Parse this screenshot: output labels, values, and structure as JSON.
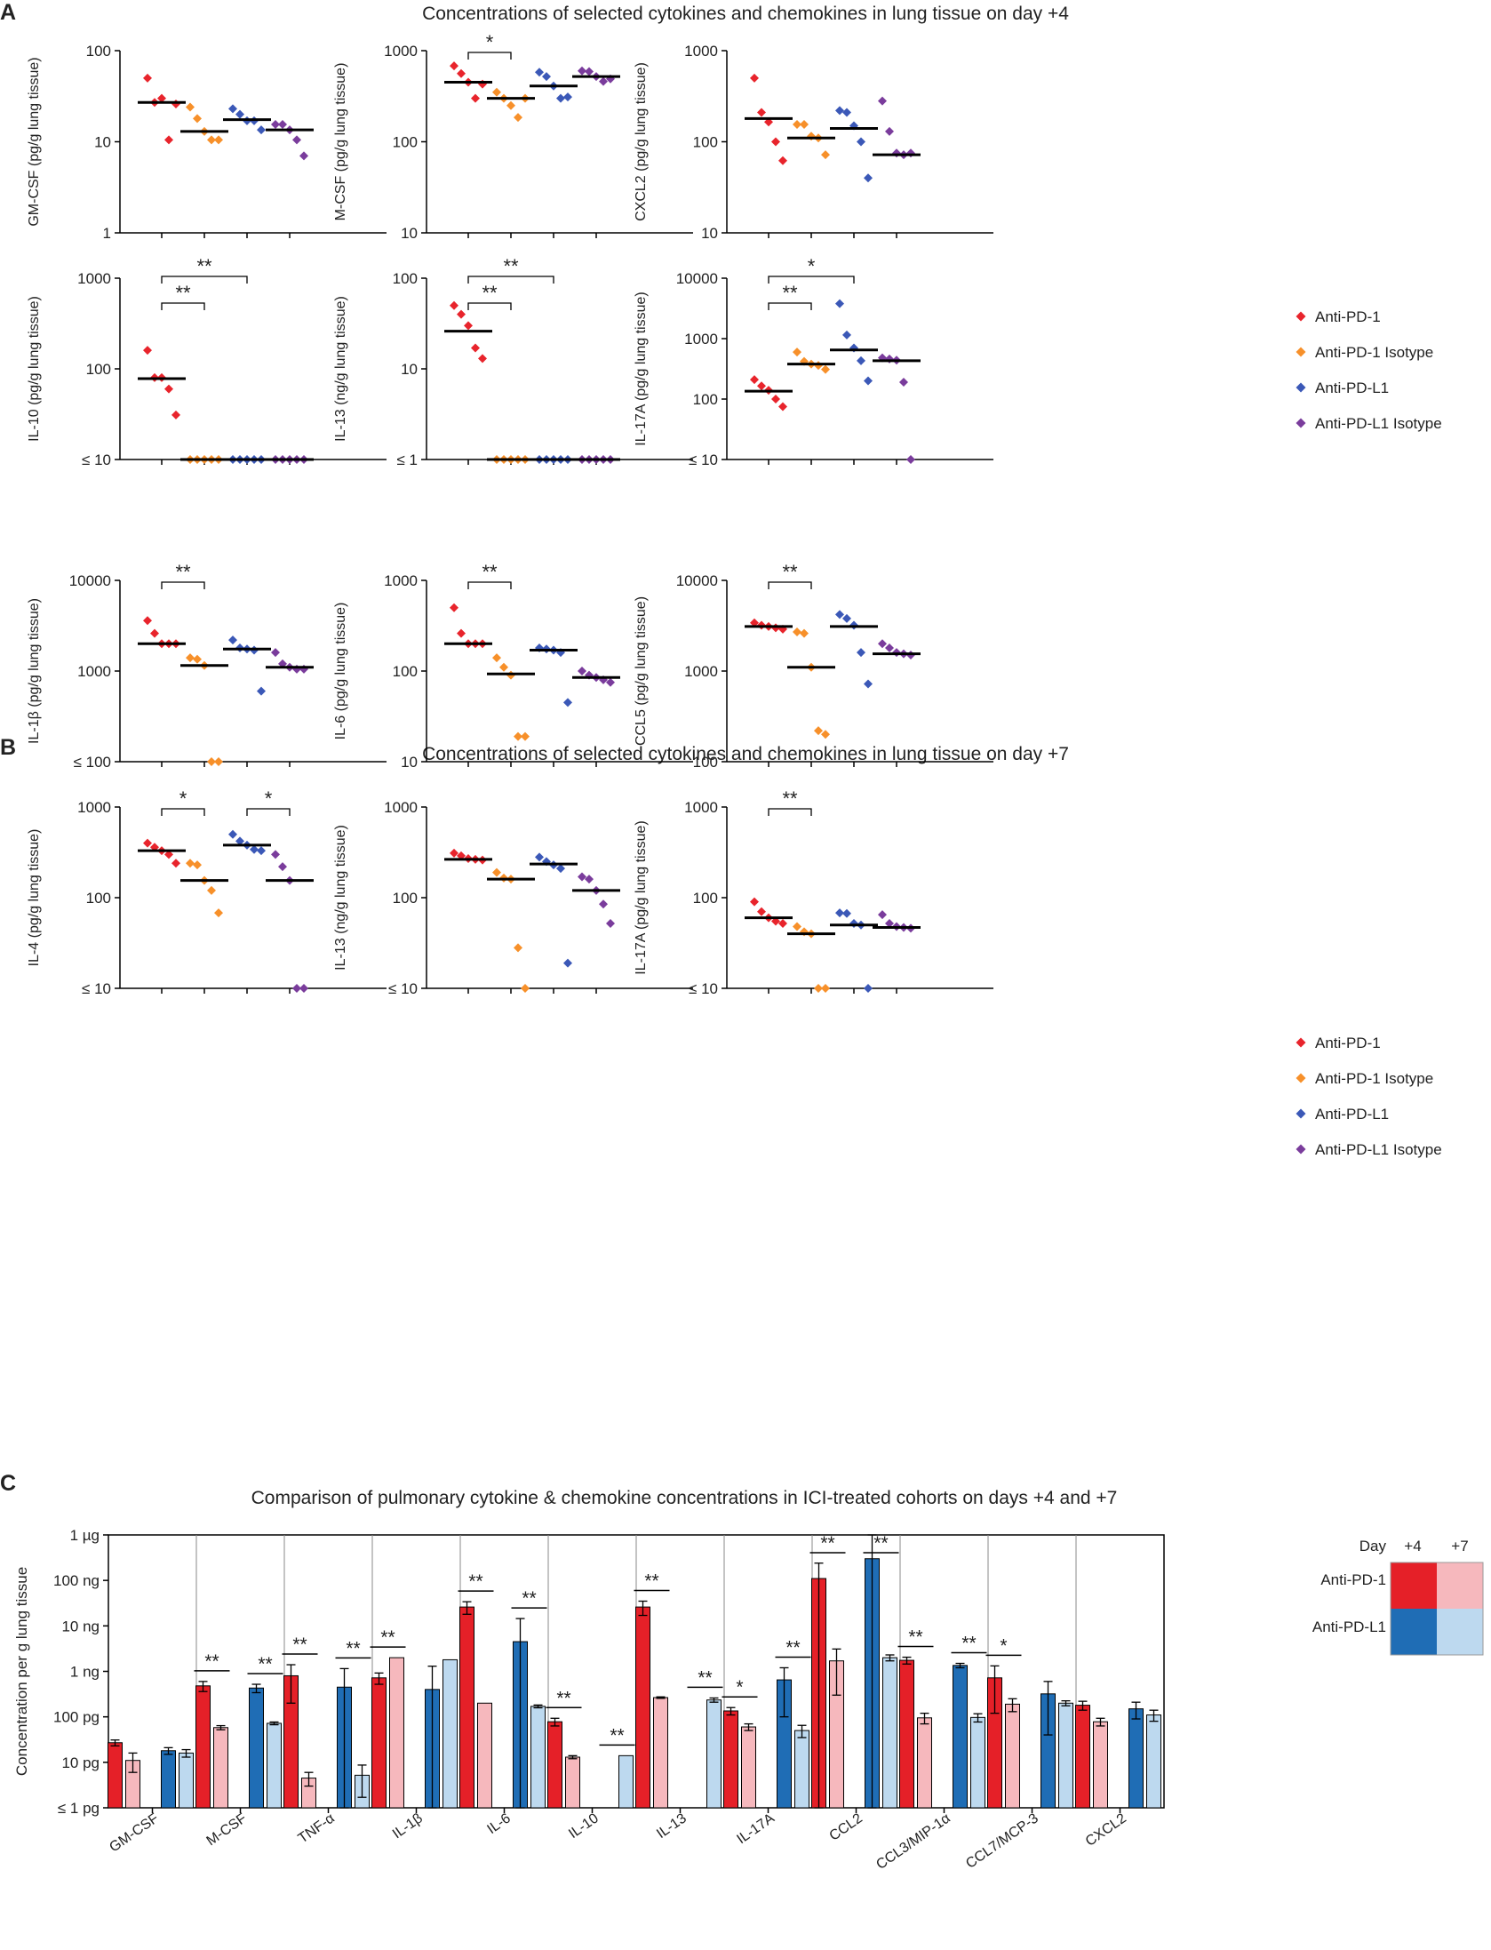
{
  "colors": {
    "anti_pd1": "#e8242c",
    "anti_pd1_isotype": "#f7902a",
    "anti_pdl1": "#3b58b7",
    "anti_pdl1_isotype": "#7a3c9c",
    "d4_pd1_bar": "#e52028",
    "d7_pd1_bar": "#f6b8bd",
    "d4_pdl1_bar": "#1f6db5",
    "d7_pdl1_bar": "#bdd9ef",
    "median": "#000000",
    "axis": "#000000"
  },
  "panels": [
    {
      "letter": "A",
      "title": "Concentrations of selected cytokines and chemokines in lung tissue on day +4"
    },
    {
      "letter": "B",
      "title": "Concentrations of selected cytokines and chemokines in lung tissue on day +7"
    },
    {
      "letter": "C",
      "title": "Comparison of pulmonary cytokine & chemokine concentrations in ICI-treated  cohorts on days +4 and +7"
    }
  ],
  "legend_groups": [
    "Anti-PD-1",
    "Anti-PD-1 Isotype",
    "Anti-PD-L1",
    "Anti-PD-L1 Isotype"
  ],
  "chart_data": [
    {
      "type": "scatter",
      "panel": "A",
      "ylabel": "GM-CSF  (pg/g  lung  tissue)",
      "scale": "log",
      "ylim": [
        1,
        100
      ],
      "ticks": [
        "1",
        "10",
        "100"
      ],
      "groups": [
        [
          50,
          27,
          30,
          10.5,
          26
        ],
        [
          24,
          18,
          13,
          10.5,
          10.5
        ],
        [
          23,
          20,
          17,
          17,
          13.5
        ],
        [
          15.5,
          15.5,
          13.5,
          10.5,
          7
        ]
      ],
      "medians": [
        27,
        13,
        17.5,
        13.5
      ],
      "sig": [],
      "categories": [
        "Anti-PD-1",
        "Anti-PD-1 Isotype",
        "Anti-PD-L1",
        "Anti-PD-L1 Isotype"
      ]
    },
    {
      "type": "scatter",
      "panel": "A",
      "ylabel": "M-CSF  (pg/g  lung  tissue)",
      "scale": "log",
      "ylim": [
        10,
        1000
      ],
      "ticks": [
        "10",
        "100",
        "1000"
      ],
      "groups": [
        [
          680,
          560,
          450,
          300,
          430
        ],
        [
          350,
          300,
          250,
          185,
          300
        ],
        [
          580,
          520,
          410,
          300,
          310
        ],
        [
          600,
          590,
          520,
          460,
          490
        ]
      ],
      "medians": [
        450,
        300,
        410,
        520
      ],
      "sig": [
        {
          "from": 0,
          "to": 1,
          "label": "*",
          "level": 1
        }
      ],
      "categories": [
        "Anti-PD-1",
        "Anti-PD-1 Isotype",
        "Anti-PD-L1",
        "Anti-PD-L1 Isotype"
      ]
    },
    {
      "type": "scatter",
      "panel": "A",
      "ylabel": "CXCL2  (pg/g  lung  tissue)",
      "scale": "log",
      "ylim": [
        10,
        1000
      ],
      "ticks": [
        "10",
        "100",
        "1000"
      ],
      "groups": [
        [
          500,
          210,
          165,
          100,
          62
        ],
        [
          155,
          155,
          115,
          110,
          72
        ],
        [
          220,
          210,
          150,
          100,
          40
        ],
        [
          280,
          130,
          75,
          72,
          75
        ]
      ],
      "medians": [
        180,
        110,
        140,
        72
      ],
      "sig": [],
      "categories": [
        "Anti-PD-1",
        "Anti-PD-1 Isotype",
        "Anti-PD-L1",
        "Anti-PD-L1 Isotype"
      ]
    },
    {
      "type": "scatter",
      "panel": "A",
      "ylabel": "IL-10  (pg/g  lung  tissue)",
      "scale": "log",
      "ylim": [
        10,
        1000
      ],
      "floor_label": "≤ 10",
      "ticks": [
        "≤ 10",
        "100",
        "1000"
      ],
      "groups": [
        [
          160,
          80,
          80,
          60,
          31
        ],
        [
          10,
          10,
          10,
          10,
          10
        ],
        [
          10,
          10,
          10,
          10,
          10
        ],
        [
          10,
          10,
          10,
          10,
          10
        ]
      ],
      "medians": [
        78,
        10,
        10,
        10
      ],
      "sig": [
        {
          "from": 0,
          "to": 1,
          "label": "**",
          "level": 1
        },
        {
          "from": 0,
          "to": 2,
          "label": "**",
          "level": 2
        }
      ],
      "categories": [
        "Anti-PD-1",
        "Anti-PD-1 Isotype",
        "Anti-PD-L1",
        "Anti-PD-L1 Isotype"
      ]
    },
    {
      "type": "scatter",
      "panel": "A",
      "ylabel": "IL-13  (ng/g  lung  tissue)",
      "scale": "log",
      "ylim": [
        1,
        100
      ],
      "floor_label": "≤ 1",
      "ticks": [
        "≤ 1",
        "10",
        "100"
      ],
      "groups": [
        [
          50,
          40,
          30,
          17,
          13
        ],
        [
          1,
          1,
          1,
          1,
          1
        ],
        [
          1,
          1,
          1,
          1,
          1
        ],
        [
          1,
          1,
          1,
          1,
          1
        ]
      ],
      "medians": [
        26,
        1,
        1,
        1
      ],
      "sig": [
        {
          "from": 0,
          "to": 1,
          "label": "**",
          "level": 1
        },
        {
          "from": 0,
          "to": 2,
          "label": "**",
          "level": 2
        }
      ],
      "categories": [
        "Anti-PD-1",
        "Anti-PD-1 Isotype",
        "Anti-PD-L1",
        "Anti-PD-L1 Isotype"
      ]
    },
    {
      "type": "scatter",
      "panel": "A",
      "ylabel": "IL-17A  (pg/g  lung  tissue)",
      "scale": "log",
      "ylim": [
        10,
        10000
      ],
      "floor_label": "≤ 10",
      "ticks": [
        "≤ 10",
        "100",
        "1000",
        "10000"
      ],
      "groups": [
        [
          210,
          165,
          140,
          100,
          75
        ],
        [
          600,
          420,
          380,
          360,
          310
        ],
        [
          3800,
          1150,
          700,
          430,
          200
        ],
        [
          480,
          460,
          440,
          190,
          10
        ]
      ],
      "medians": [
        135,
        380,
        650,
        430
      ],
      "sig": [
        {
          "from": 0,
          "to": 1,
          "label": "**",
          "level": 1
        },
        {
          "from": 0,
          "to": 2,
          "label": "*",
          "level": 2
        }
      ],
      "categories": [
        "Anti-PD-1",
        "Anti-PD-1 Isotype",
        "Anti-PD-L1",
        "Anti-PD-L1 Isotype"
      ]
    },
    {
      "type": "scatter",
      "panel": "B",
      "ylabel": "IL-1β  (pg/g  lung  tissue)",
      "scale": "log",
      "ylim": [
        100,
        10000
      ],
      "floor_label": "≤ 100",
      "ticks": [
        "≤ 100",
        "1000",
        "10000"
      ],
      "groups": [
        [
          3600,
          2600,
          2000,
          2000,
          2000
        ],
        [
          1400,
          1350,
          1150,
          100,
          100
        ],
        [
          2200,
          1800,
          1750,
          1700,
          600
        ],
        [
          1600,
          1200,
          1100,
          1050,
          1050
        ]
      ],
      "medians": [
        2000,
        1150,
        1750,
        1100
      ],
      "sig": [
        {
          "from": 0,
          "to": 1,
          "label": "**",
          "level": 1
        }
      ],
      "categories": [
        "Anti-PD-1",
        "Anti-PD-1 Isotype",
        "Anti-PD-L1",
        "Anti-PD-L1 Isotype"
      ]
    },
    {
      "type": "scatter",
      "panel": "B",
      "ylabel": "IL-6  (pg/g  lung  tissue)",
      "scale": "log",
      "ylim": [
        10,
        1000
      ],
      "ticks": [
        "10",
        "100",
        "1000"
      ],
      "groups": [
        [
          500,
          260,
          200,
          200,
          200
        ],
        [
          140,
          110,
          90,
          19,
          19
        ],
        [
          180,
          175,
          170,
          160,
          45
        ],
        [
          100,
          90,
          85,
          80,
          75
        ]
      ],
      "medians": [
        200,
        93,
        170,
        85
      ],
      "sig": [
        {
          "from": 0,
          "to": 1,
          "label": "**",
          "level": 1
        }
      ],
      "categories": [
        "Anti-PD-1",
        "Anti-PD-1 Isotype",
        "Anti-PD-L1",
        "Anti-PD-L1 Isotype"
      ]
    },
    {
      "type": "scatter",
      "panel": "B",
      "ylabel": "CCL5  (pg/g  lung  tissue)",
      "scale": "log",
      "ylim": [
        100,
        10000
      ],
      "ticks": [
        "100",
        "1000",
        "10000"
      ],
      "groups": [
        [
          3400,
          3200,
          3100,
          3000,
          2900
        ],
        [
          2700,
          2600,
          1100,
          220,
          200
        ],
        [
          4200,
          3800,
          3200,
          1600,
          720
        ],
        [
          2000,
          1800,
          1600,
          1550,
          1500
        ]
      ],
      "medians": [
        3100,
        1100,
        3100,
        1550
      ],
      "sig": [
        {
          "from": 0,
          "to": 1,
          "label": "**",
          "level": 1
        }
      ],
      "categories": [
        "Anti-PD-1",
        "Anti-PD-1 Isotype",
        "Anti-PD-L1",
        "Anti-PD-L1 Isotype"
      ]
    },
    {
      "type": "scatter",
      "panel": "B",
      "ylabel": "IL-4  (pg/g  lung  tissue)",
      "scale": "log",
      "ylim": [
        10,
        1000
      ],
      "floor_label": "≤ 10",
      "ticks": [
        "≤ 10",
        "100",
        "1000"
      ],
      "groups": [
        [
          400,
          360,
          330,
          300,
          240
        ],
        [
          240,
          230,
          155,
          120,
          68
        ],
        [
          500,
          420,
          380,
          340,
          330
        ],
        [
          300,
          220,
          155,
          10,
          10
        ]
      ],
      "medians": [
        330,
        155,
        380,
        155
      ],
      "sig": [
        {
          "from": 0,
          "to": 1,
          "label": "*",
          "level": 1
        },
        {
          "from": 2,
          "to": 3,
          "label": "*",
          "level": 1
        }
      ],
      "categories": [
        "Anti-PD-1",
        "Anti-PD-1 Isotype",
        "Anti-PD-L1",
        "Anti-PD-L1 Isotype"
      ]
    },
    {
      "type": "scatter",
      "panel": "B",
      "ylabel": "IL-13  (ng/g  lung  tissue)",
      "scale": "log",
      "ylim": [
        10,
        1000
      ],
      "floor_label": "≤ 10",
      "ticks": [
        "≤ 10",
        "100",
        "1000"
      ],
      "groups": [
        [
          310,
          290,
          270,
          265,
          260
        ],
        [
          190,
          165,
          160,
          28,
          10
        ],
        [
          280,
          250,
          230,
          210,
          19
        ],
        [
          170,
          160,
          120,
          85,
          52
        ]
      ],
      "medians": [
        265,
        160,
        235,
        120
      ],
      "sig": [],
      "categories": [
        "Anti-PD-1",
        "Anti-PD-1 Isotype",
        "Anti-PD-L1",
        "Anti-PD-L1 Isotype"
      ]
    },
    {
      "type": "scatter",
      "panel": "B",
      "ylabel": "IL-17A  (pg/g  lung  tissue)",
      "scale": "log",
      "ylim": [
        10,
        1000
      ],
      "floor_label": "≤ 10",
      "ticks": [
        "≤ 10",
        "100",
        "1000"
      ],
      "groups": [
        [
          90,
          70,
          60,
          55,
          52
        ],
        [
          48,
          42,
          40,
          10,
          10
        ],
        [
          68,
          67,
          52,
          50,
          10
        ],
        [
          65,
          52,
          48,
          47,
          46
        ]
      ],
      "medians": [
        60,
        40,
        50,
        47
      ],
      "sig": [
        {
          "from": 0,
          "to": 1,
          "label": "**",
          "level": 1
        }
      ],
      "categories": [
        "Anti-PD-1",
        "Anti-PD-1 Isotype",
        "Anti-PD-L1",
        "Anti-PD-L1 Isotype"
      ]
    },
    {
      "type": "bar",
      "panel": "C",
      "ylabel": "Concentration per g lung tissue",
      "scale": "log",
      "ylim_pg": [
        1,
        1000000
      ],
      "ticks": [
        "≤ 1 pg",
        "10 pg",
        "100 pg",
        "1 ng",
        "10 ng",
        "100 ng",
        "1 µg"
      ],
      "categories": [
        "GM-CSF",
        "M-CSF",
        "TNF-α",
        "IL-1β",
        "IL-6",
        "IL-10",
        "IL-13",
        "IL-17A",
        "CCL2",
        "CCL3/MIP-1α",
        "CCL7/MCP-3",
        "CXCL2"
      ],
      "series": [
        {
          "name": "Anti-PD-1 Day +4",
          "values": [
            27,
            480,
            800,
            720,
            26000,
            78,
            26000,
            135,
            110000,
            1750,
            720,
            180
          ],
          "errors": [
            4,
            120,
            600,
            200,
            8000,
            15,
            9000,
            25,
            130000,
            300,
            600,
            40
          ]
        },
        {
          "name": "Anti-PD-1 Day +7",
          "values": [
            11,
            58,
            4.5,
            2000,
            200,
            13,
            265,
            60,
            1700,
            95,
            190,
            78
          ],
          "errors": [
            5,
            6,
            1.5,
            0,
            0,
            1,
            10,
            10,
            1400,
            25,
            60,
            15
          ]
        },
        {
          "name": "Anti-PD-L1 Day +4",
          "values": [
            18,
            430,
            450,
            400,
            4500,
            1,
            1,
            650,
            300000,
            1350,
            320,
            150
          ],
          "errors": [
            3,
            90,
            700,
            900,
            10000,
            0,
            0,
            550,
            700000,
            150,
            280,
            60
          ]
        },
        {
          "name": "Anti-PD-L1 Day +7",
          "values": [
            16,
            72,
            5.2,
            1800,
            170,
            14,
            235,
            50,
            2000,
            97,
            200,
            110
          ],
          "errors": [
            3,
            5,
            3.5,
            0,
            12,
            0,
            25,
            15,
            300,
            20,
            25,
            30
          ]
        }
      ],
      "sig": [
        {
          "cat": 1,
          "pair": 0,
          "label": "**"
        },
        {
          "cat": 1,
          "pair": 1,
          "label": "**"
        },
        {
          "cat": 2,
          "pair": 0,
          "label": "**"
        },
        {
          "cat": 2,
          "pair": 1,
          "label": "**"
        },
        {
          "cat": 3,
          "pair": 0,
          "label": "**"
        },
        {
          "cat": 4,
          "pair": 0,
          "label": "**"
        },
        {
          "cat": 4,
          "pair": 1,
          "label": "**"
        },
        {
          "cat": 5,
          "pair": 0,
          "label": "**"
        },
        {
          "cat": 5,
          "pair": 1,
          "label": "**"
        },
        {
          "cat": 6,
          "pair": 0,
          "label": "**"
        },
        {
          "cat": 6,
          "pair": 1,
          "label": "**"
        },
        {
          "cat": 7,
          "pair": 0,
          "label": "*"
        },
        {
          "cat": 7,
          "pair": 1,
          "label": "**"
        },
        {
          "cat": 8,
          "pair": 0,
          "label": "**"
        },
        {
          "cat": 8,
          "pair": 1,
          "label": "**"
        },
        {
          "cat": 9,
          "pair": 0,
          "label": "**"
        },
        {
          "cat": 9,
          "pair": 1,
          "label": "**"
        },
        {
          "cat": 10,
          "pair": 0,
          "label": "*"
        }
      ],
      "legend": {
        "day_label": "Day",
        "days": [
          "+4",
          "+7"
        ],
        "rows": [
          "Anti-PD-1",
          "Anti-PD-L1"
        ]
      }
    }
  ]
}
